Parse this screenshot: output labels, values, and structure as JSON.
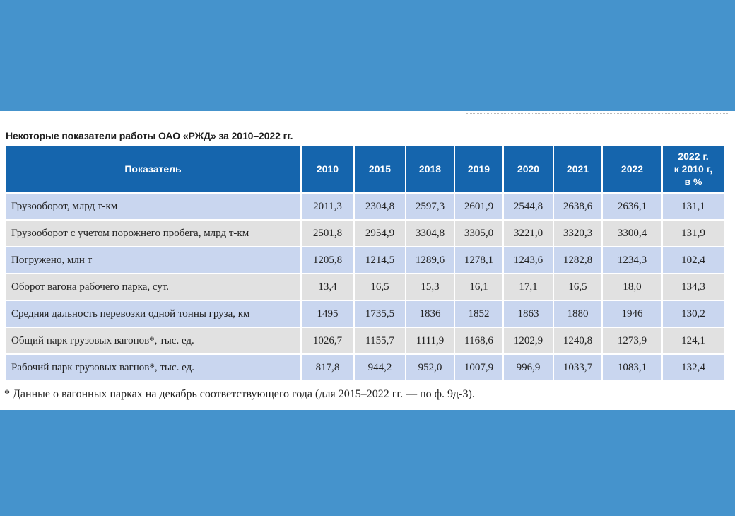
{
  "title": "Некоторые показатели работы ОАО «РЖД» за 2010–2022 гг.",
  "table": {
    "headers": [
      "Показатель",
      "2010",
      "2015",
      "2018",
      "2019",
      "2020",
      "2021",
      "2022",
      "2022 г.\nк 2010 г,\nв %"
    ],
    "rows": [
      [
        "Грузооборот, млрд т-км",
        "2011,3",
        "2304,8",
        "2597,3",
        "2601,9",
        "2544,8",
        "2638,6",
        "2636,1",
        "131,1"
      ],
      [
        "Грузооборот с учетом порожнего пробега, млрд т-км",
        "2501,8",
        "2954,9",
        "3304,8",
        "3305,0",
        "3221,0",
        "3320,3",
        "3300,4",
        "131,9"
      ],
      [
        "Погружено, млн т",
        "1205,8",
        "1214,5",
        "1289,6",
        "1278,1",
        "1243,6",
        "1282,8",
        "1234,3",
        "102,4"
      ],
      [
        "Оборот вагона рабочего парка, сут.",
        "13,4",
        "16,5",
        "15,3",
        "16,1",
        "17,1",
        "16,5",
        "18,0",
        "134,3"
      ],
      [
        "Средняя дальность перевозки одной тонны груза, км",
        "1495",
        "1735,5",
        "1836",
        "1852",
        "1863",
        "1880",
        "1946",
        "130,2"
      ],
      [
        "Общий парк грузовых вагонов*, тыс. ед.",
        "1026,7",
        "1155,7",
        "1111,9",
        "1168,6",
        "1202,9",
        "1240,8",
        "1273,9",
        "124,1"
      ],
      [
        "Рабочий парк грузовых вагнов*, тыс. ед.",
        "817,8",
        "944,2",
        "952,0",
        "1007,9",
        "996,9",
        "1033,7",
        "1083,1",
        "132,4"
      ]
    ]
  },
  "footnote": "* Данные о вагонных парках на декабрь соответствующего года (для 2015–2022 гг. — по ф. 9д-3).",
  "colors": {
    "background": "#4593cc",
    "header": "#1565ad",
    "row_blue": "#c9d6ef",
    "row_grey": "#e1e1e1"
  }
}
